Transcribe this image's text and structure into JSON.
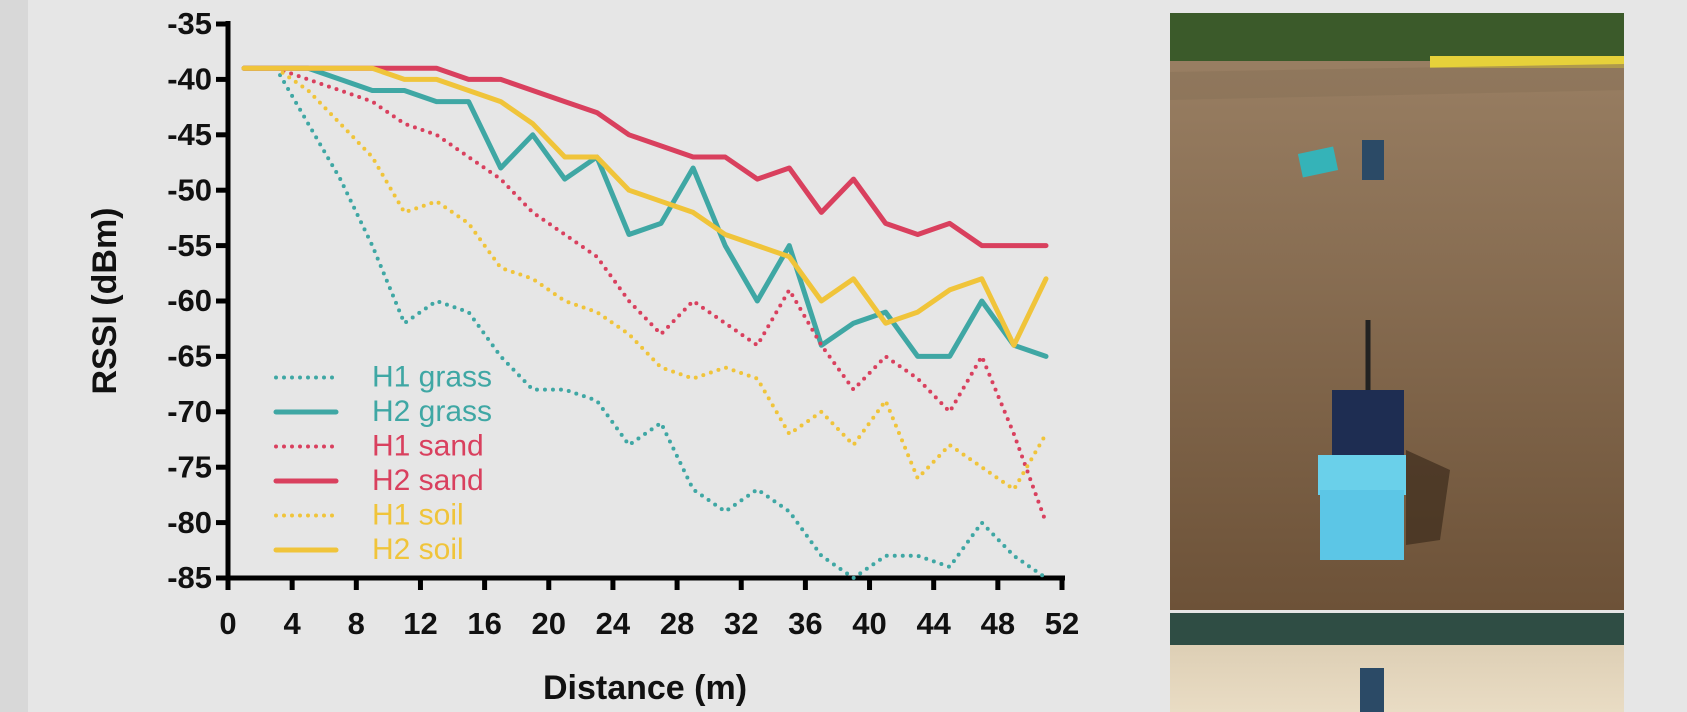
{
  "chart_data": {
    "type": "line",
    "x_label": "Distance (m)",
    "y_label": "RSSI (dBm)",
    "x": [
      1,
      3,
      5,
      7,
      9,
      11,
      13,
      15,
      17,
      19,
      21,
      23,
      25,
      27,
      29,
      31,
      33,
      35,
      37,
      39,
      41,
      43,
      45,
      47,
      49,
      51
    ],
    "xlim": [
      0,
      52
    ],
    "xticks": [
      0,
      4,
      8,
      12,
      16,
      20,
      24,
      28,
      32,
      36,
      40,
      44,
      48,
      52
    ],
    "ylim": [
      -85,
      -35
    ],
    "yticks": [
      -35,
      -40,
      -45,
      -50,
      -55,
      -60,
      -65,
      -70,
      -75,
      -80,
      -85
    ],
    "grid": false,
    "legend": "lower left",
    "series": [
      {
        "name": "H1 grass",
        "color": "#3fa7a4",
        "style": "dotted",
        "values": [
          -39,
          -39,
          -44,
          -49,
          -55,
          -62,
          -60,
          -61,
          -65,
          -68,
          -68,
          -69,
          -73,
          -71,
          -77,
          -79,
          -77,
          -79,
          -83,
          -85,
          -83,
          -83,
          -84,
          -80,
          -83,
          -85
        ]
      },
      {
        "name": "H2 grass",
        "color": "#3fa7a4",
        "style": "solid",
        "values": [
          -39,
          -39,
          -39,
          -40,
          -41,
          -41,
          -42,
          -42,
          -48,
          -45,
          -49,
          -47,
          -54,
          -53,
          -48,
          -55,
          -60,
          -55,
          -64,
          -62,
          -61,
          -65,
          -65,
          -60,
          -64,
          -65
        ]
      },
      {
        "name": "H1 sand",
        "color": "#d9405e",
        "style": "dotted",
        "values": [
          -39,
          -39,
          -40,
          -41,
          -42,
          -44,
          -45,
          -47,
          -49,
          -52,
          -54,
          -56,
          -60,
          -63,
          -60,
          -62,
          -64,
          -59,
          -64,
          -68,
          -65,
          -67,
          -70,
          -65,
          -72,
          -80
        ]
      },
      {
        "name": "H2 sand",
        "color": "#d9405e",
        "style": "solid",
        "values": [
          -39,
          -39,
          -39,
          -39,
          -39,
          -39,
          -39,
          -40,
          -40,
          -41,
          -42,
          -43,
          -45,
          -46,
          -47,
          -47,
          -49,
          -48,
          -52,
          -49,
          -53,
          -54,
          -53,
          -55,
          -55,
          -55
        ]
      },
      {
        "name": "H1 soil",
        "color": "#f0c43a",
        "style": "dotted",
        "values": [
          -39,
          -39,
          -41,
          -44,
          -47,
          -52,
          -51,
          -53,
          -57,
          -58,
          -60,
          -61,
          -63,
          -66,
          -67,
          -66,
          -67,
          -72,
          -70,
          -73,
          -69,
          -76,
          -73,
          -75,
          -77,
          -72
        ]
      },
      {
        "name": "H2 soil",
        "color": "#f0c43a",
        "style": "solid",
        "values": [
          -39,
          -39,
          -39,
          -39,
          -39,
          -40,
          -40,
          -41,
          -42,
          -44,
          -47,
          -47,
          -50,
          -51,
          -52,
          -54,
          -55,
          -56,
          -60,
          -58,
          -62,
          -61,
          -59,
          -58,
          -64,
          -58
        ]
      }
    ]
  }
}
